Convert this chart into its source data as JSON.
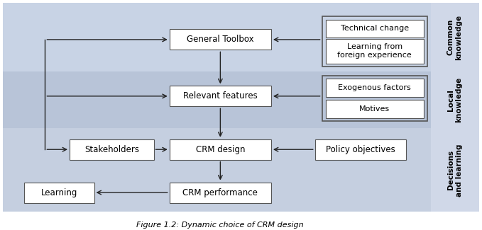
{
  "title": "Figure 1.2: Dynamic choice of CRM design",
  "band_common_color": "#c8d3e5",
  "band_local_color": "#b8c4d8",
  "band_decisions_color": "#c5cfe0",
  "band_right_color": "#d0d8e8",
  "box_face": "#ffffff",
  "box_edge": "#555555",
  "arrow_color": "#222222",
  "label_common": "Common\nknowledge",
  "label_local": "Local\nknowledge",
  "label_decisions": "Decisions\nand learning",
  "box_general_toolbox": "General Toolbox",
  "box_relevant_features": "Relevant features",
  "box_stakeholders": "Stakeholders",
  "box_crm_design": "CRM design",
  "box_policy_objectives": "Policy objectives",
  "box_crm_performance": "CRM performance",
  "box_learning": "Learning",
  "box_technical_change": "Technical change",
  "box_learning_foreign": "Learning from\nforeign experience",
  "box_exogenous_factors": "Exogenous factors",
  "box_motives": "Motives",
  "figw": 6.79,
  "figh": 3.25,
  "dpi": 100
}
